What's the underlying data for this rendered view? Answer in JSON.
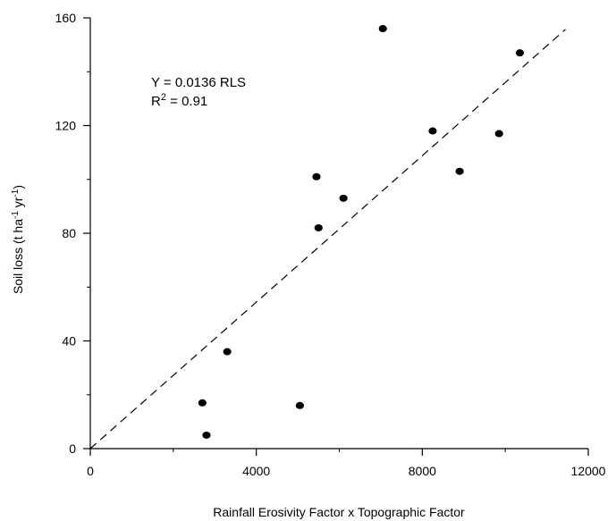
{
  "chart_data": {
    "type": "scatter",
    "xlabel": "Rainfall Erosivity Factor x Topographic Factor",
    "ylabel": {
      "pre": "Soil loss (t ha",
      "sup1": "-1",
      "mid": " yr",
      "sup2": "-1",
      "post": ")"
    },
    "xlim": [
      0,
      12000
    ],
    "ylim": [
      0,
      160
    ],
    "xticks": [
      0,
      4000,
      8000,
      12000
    ],
    "yticks": [
      0,
      40,
      80,
      120,
      160
    ],
    "grid": false,
    "points": [
      {
        "x": 2700,
        "y": 17
      },
      {
        "x": 2800,
        "y": 5
      },
      {
        "x": 3300,
        "y": 36
      },
      {
        "x": 5050,
        "y": 16
      },
      {
        "x": 5450,
        "y": 101
      },
      {
        "x": 5500,
        "y": 82
      },
      {
        "x": 6100,
        "y": 93
      },
      {
        "x": 7050,
        "y": 156
      },
      {
        "x": 8250,
        "y": 118
      },
      {
        "x": 8900,
        "y": 103
      },
      {
        "x": 9850,
        "y": 117
      },
      {
        "x": 10350,
        "y": 147
      }
    ],
    "fit_line": {
      "slope": 0.0136,
      "intercept": 0,
      "x_start": 0,
      "x_end": 11450,
      "style": "dashed"
    },
    "annotation": {
      "equation": "Y = 0.0136 RLS",
      "r2_pre": "R",
      "r2_sup": "2",
      "r2_post": " = 0.91"
    }
  }
}
